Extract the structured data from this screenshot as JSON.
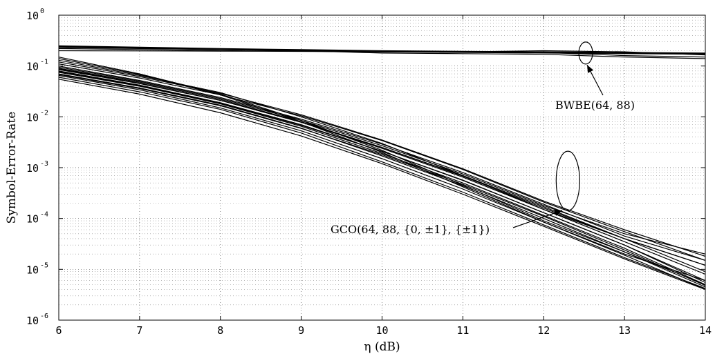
{
  "chart_data": {
    "type": "line",
    "xlabel": "η (dB)",
    "ylabel": "Symbol-Error-Rate",
    "xlim": [
      6,
      14
    ],
    "ylim": [
      1e-06,
      1
    ],
    "yscale": "log",
    "grid": true,
    "x_ticks": [
      "6",
      "7",
      "8",
      "9",
      "10",
      "11",
      "12",
      "13",
      "14"
    ],
    "y_tick_exponents": [
      "0",
      "-1",
      "-2",
      "-3",
      "-4",
      "-5",
      "-6"
    ],
    "y_tick_base": "10",
    "annotations": [
      {
        "text": "BWBE(64, 88)",
        "target": "bwbe-group"
      },
      {
        "text": "GCO(64, 88, {0, ±1}, {±1})",
        "target": "gco-group"
      }
    ],
    "x": [
      6,
      7,
      8,
      9,
      10,
      11,
      12,
      13,
      14
    ],
    "bwbe_series": [
      {
        "group": "bwbe",
        "values": [
          0.25,
          0.235,
          0.22,
          0.21,
          0.2,
          0.195,
          0.19,
          0.185,
          0.18
        ]
      },
      {
        "group": "bwbe",
        "values": [
          0.24,
          0.225,
          0.21,
          0.2,
          0.19,
          0.185,
          0.18,
          0.175,
          0.17
        ]
      },
      {
        "group": "bwbe",
        "values": [
          0.22,
          0.21,
          0.2,
          0.195,
          0.19,
          0.19,
          0.185,
          0.18,
          0.175
        ]
      },
      {
        "group": "bwbe",
        "values": [
          0.2,
          0.198,
          0.196,
          0.194,
          0.19,
          0.188,
          0.185,
          0.16,
          0.15
        ]
      },
      {
        "group": "bwbe",
        "values": [
          0.245,
          0.23,
          0.215,
          0.205,
          0.195,
          0.19,
          0.2,
          0.19,
          0.165
        ]
      },
      {
        "group": "bwbe",
        "values": [
          0.23,
          0.22,
          0.21,
          0.2,
          0.18,
          0.175,
          0.17,
          0.15,
          0.14
        ]
      }
    ],
    "gco_series": [
      {
        "group": "gco",
        "values": [
          0.15,
          0.07,
          0.028,
          0.0085,
          0.0022,
          0.00045,
          9e-05,
          2.2e-05,
          5e-06
        ]
      },
      {
        "group": "gco",
        "values": [
          0.14,
          0.068,
          0.027,
          0.008,
          0.002,
          0.00042,
          8.5e-05,
          2e-05,
          6e-06
        ]
      },
      {
        "group": "gco",
        "values": [
          0.13,
          0.065,
          0.03,
          0.01,
          0.003,
          0.0007,
          0.00015,
          4e-05,
          1.2e-05
        ]
      },
      {
        "group": "gco",
        "values": [
          0.12,
          0.062,
          0.029,
          0.011,
          0.0035,
          0.00095,
          0.00022,
          6e-05,
          1.8e-05
        ]
      },
      {
        "group": "gco",
        "values": [
          0.11,
          0.058,
          0.027,
          0.0105,
          0.0034,
          0.00092,
          0.00021,
          5.5e-05,
          1.5e-05
        ]
      },
      {
        "group": "gco",
        "values": [
          0.095,
          0.05,
          0.023,
          0.0085,
          0.0027,
          0.00075,
          0.00018,
          5e-05,
          2e-05
        ]
      },
      {
        "group": "gco",
        "values": [
          0.09,
          0.048,
          0.022,
          0.008,
          0.0025,
          0.0007,
          0.00017,
          4e-05,
          1.2e-05
        ]
      },
      {
        "group": "gco",
        "values": [
          0.085,
          0.045,
          0.021,
          0.0078,
          0.0024,
          0.00065,
          0.00015,
          3.5e-05,
          8e-06
        ]
      },
      {
        "group": "gco",
        "values": [
          0.08,
          0.042,
          0.019,
          0.007,
          0.0021,
          0.00057,
          0.00013,
          3e-05,
          6e-06
        ]
      },
      {
        "group": "gco",
        "values": [
          0.075,
          0.04,
          0.018,
          0.0065,
          0.0019,
          0.0005,
          0.000115,
          2.6e-05,
          5e-06
        ]
      },
      {
        "group": "gco",
        "values": [
          0.07,
          0.037,
          0.017,
          0.006,
          0.0017,
          0.00044,
          0.0001,
          2.2e-05,
          4.5e-06
        ]
      },
      {
        "group": "gco",
        "values": [
          0.065,
          0.034,
          0.015,
          0.0053,
          0.0015,
          0.00038,
          8.5e-05,
          1.9e-05,
          4e-06
        ]
      },
      {
        "group": "gco",
        "values": [
          0.06,
          0.031,
          0.014,
          0.0048,
          0.0013,
          0.00033,
          7.5e-05,
          1.7e-05,
          4.2e-06
        ]
      },
      {
        "group": "gco",
        "values": [
          0.055,
          0.028,
          0.012,
          0.0042,
          0.0012,
          0.0003,
          7e-05,
          1.6e-05,
          4e-06
        ]
      },
      {
        "group": "gco",
        "values": [
          0.1,
          0.052,
          0.024,
          0.009,
          0.0029,
          0.0008,
          0.00019,
          4.5e-05,
          1.5e-05
        ]
      },
      {
        "group": "gco",
        "values": [
          0.088,
          0.046,
          0.021,
          0.0079,
          0.0025,
          0.00068,
          0.00016,
          4e-05,
          9e-06
        ]
      },
      {
        "group": "gco",
        "values": [
          0.078,
          0.041,
          0.0185,
          0.0068,
          0.0021,
          0.00056,
          0.00013,
          3e-05,
          5.5e-06
        ]
      },
      {
        "group": "gco",
        "values": [
          0.068,
          0.036,
          0.0165,
          0.0059,
          0.0018,
          0.00047,
          0.00011,
          2.4e-05,
          4.8e-06
        ]
      }
    ]
  }
}
